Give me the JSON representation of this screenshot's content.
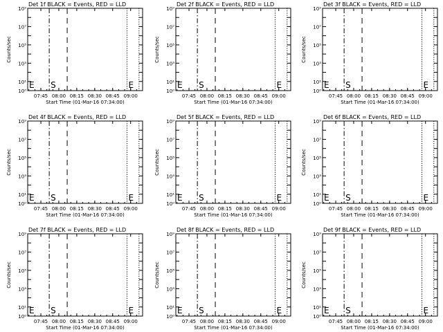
{
  "chart_data": [
    {
      "title": "Det 1f BLACK = Events, RED = LLD",
      "ylabel": "Counts/sec",
      "xlabel": "Start Time (01-Mar-16 07:34:00)",
      "type": "line",
      "yscale": "log",
      "ylim": [
        1,
        1000000000.0
      ]
    },
    {
      "title": "Det 2f BLACK = Events, RED = LLD",
      "ylabel": "Counts/sec",
      "xlabel": "Start Time (01-Mar-16 07:34:00)",
      "type": "line",
      "yscale": "log",
      "ylim": [
        1,
        1000000000.0
      ]
    },
    {
      "title": "Det 3f BLACK = Events, RED = LLD",
      "ylabel": "Counts/sec",
      "xlabel": "Start Time (01-Mar-16 07:34:00)",
      "type": "line",
      "yscale": "log",
      "ylim": [
        1,
        1000000000.0
      ]
    },
    {
      "title": "Det 4f BLACK = Events, RED = LLD",
      "ylabel": "Counts/sec",
      "xlabel": "Start Time (01-Mar-16 07:34:00)",
      "type": "line",
      "yscale": "log",
      "ylim": [
        1,
        1000000000.0
      ]
    },
    {
      "title": "Det 5f BLACK = Events, RED = LLD",
      "ylabel": "Counts/sec",
      "xlabel": "Start Time (01-Mar-16 07:34:00)",
      "type": "line",
      "yscale": "log",
      "ylim": [
        1,
        1000000000.0
      ]
    },
    {
      "title": "Det 6f BLACK = Events, RED = LLD",
      "ylabel": "Counts/sec",
      "xlabel": "Start Time (01-Mar-16 07:34:00)",
      "type": "line",
      "yscale": "log",
      "ylim": [
        1,
        1000000000.0
      ]
    },
    {
      "title": "Det 7f BLACK = Events, RED = LLD",
      "ylabel": "Counts/sec",
      "xlabel": "Start Time (01-Mar-16 07:34:00)",
      "type": "line",
      "yscale": "log",
      "ylim": [
        1,
        1000000000.0
      ]
    },
    {
      "title": "Det 8f BLACK = Events, RED = LLD",
      "ylabel": "Counts/sec",
      "xlabel": "Start Time (01-Mar-16 07:34:00)",
      "type": "line",
      "yscale": "log",
      "ylim": [
        1,
        1000000000.0
      ]
    },
    {
      "title": "Det 9f BLACK = Events, RED = LLD",
      "ylabel": "Counts/sec",
      "xlabel": "Start Time (01-Mar-16 07:34:00)",
      "type": "line",
      "yscale": "log",
      "ylim": [
        1,
        1000000000.0
      ]
    }
  ],
  "shared": {
    "x_start": "07:34:00",
    "x_end": "09:10:00",
    "xticks": [
      "07:45",
      "08:00",
      "08:15",
      "08:30",
      "08:45",
      "09:00"
    ],
    "yticks": [
      {
        "value": 1,
        "label": "10⁰"
      },
      {
        "value": 10,
        "label": "10¹"
      },
      {
        "value": 1000,
        "label": "10³"
      },
      {
        "value": 100000,
        "label": "10⁵"
      },
      {
        "value": 10000000,
        "label": "10⁷"
      },
      {
        "value": 1000000000,
        "label": "10⁹"
      }
    ],
    "markers": [
      {
        "time": "07:34:00",
        "label": "E",
        "style": "dotted"
      },
      {
        "time": "07:52:00",
        "label": "S",
        "style": "dashdot"
      },
      {
        "time": "08:07:00",
        "label": "",
        "style": "dashed"
      },
      {
        "time": "08:57:00",
        "label": "E",
        "style": "dotted"
      },
      {
        "time": "09:07:00",
        "label": "",
        "style": "dotted"
      }
    ],
    "colors": {
      "events": "#000000",
      "lld": "#ff0000"
    }
  }
}
